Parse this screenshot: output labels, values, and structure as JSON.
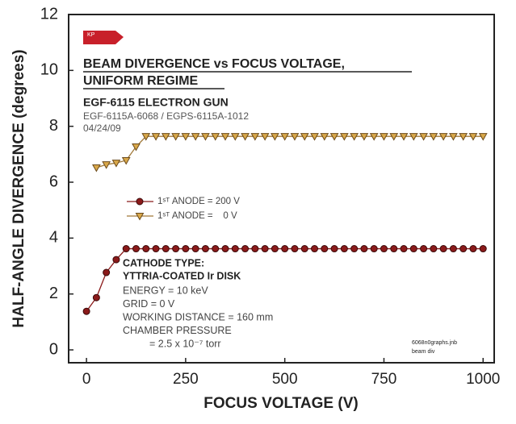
{
  "chart_data": {
    "type": "line",
    "y_label": "HALF-ANGLE DIVERGENCE (degrees)",
    "x_label": "FOCUS VOLTAGE (V)",
    "logo": "KP",
    "title_lines": [
      "BEAM DIVERGENCE vs FOCUS VOLTAGE,",
      "UNIFORM REGIME"
    ],
    "subtitle": "EGF-6115 ELECTRON GUN",
    "info_lines": [
      "EGF-6115A-6068 / EGPS-6115A-1012",
      "04/24/09"
    ],
    "notes_bold": [
      "CATHODE TYPE:",
      "YTTRIA-COATED Ir DISK"
    ],
    "notes": [
      "ENERGY = 10 keV",
      "GRID = 0 V",
      "WORKING DISTANCE = 160 mm",
      "CHAMBER PRESSURE",
      "= 2.5 x 10⁻⁷ torr"
    ],
    "file_notes": [
      "6068n0graphs.jnb",
      "beam div"
    ],
    "xlim": [
      -45,
      1028
    ],
    "ylim": [
      -0.46,
      12
    ],
    "xticks": [
      0,
      250,
      500,
      750,
      1000
    ],
    "yticks": [
      0,
      2,
      4,
      6,
      8,
      10,
      12
    ],
    "series": [
      {
        "name": "1ˢᵀ ANODE = 200 V",
        "color": "#8b1a1a",
        "marker": "circle",
        "x": [
          0,
          25,
          50,
          75,
          100,
          125,
          150,
          175,
          200,
          225,
          250,
          275,
          300,
          325,
          350,
          375,
          400,
          425,
          450,
          475,
          500,
          525,
          550,
          575,
          600,
          625,
          650,
          675,
          700,
          725,
          750,
          775,
          800,
          825,
          850,
          875,
          900,
          925,
          950,
          975,
          1000
        ],
        "values": [
          1.38,
          1.87,
          2.77,
          3.23,
          3.62,
          3.62,
          3.62,
          3.62,
          3.62,
          3.62,
          3.62,
          3.62,
          3.62,
          3.62,
          3.62,
          3.62,
          3.62,
          3.62,
          3.62,
          3.62,
          3.62,
          3.62,
          3.62,
          3.62,
          3.62,
          3.62,
          3.62,
          3.62,
          3.62,
          3.62,
          3.62,
          3.62,
          3.62,
          3.62,
          3.62,
          3.62,
          3.62,
          3.62,
          3.62,
          3.62,
          3.62
        ]
      },
      {
        "name": "1ˢᵀ ANODE =    0 V",
        "color": "#d9a84a",
        "marker": "triangle",
        "x": [
          25,
          50,
          75,
          100,
          125,
          150,
          175,
          200,
          225,
          250,
          275,
          300,
          325,
          350,
          375,
          400,
          425,
          450,
          475,
          500,
          525,
          550,
          575,
          600,
          625,
          650,
          675,
          700,
          725,
          750,
          775,
          800,
          825,
          850,
          875,
          900,
          925,
          950,
          975,
          1000
        ],
        "values": [
          6.52,
          6.63,
          6.69,
          6.78,
          7.27,
          7.64,
          7.64,
          7.64,
          7.64,
          7.64,
          7.64,
          7.64,
          7.64,
          7.64,
          7.64,
          7.64,
          7.64,
          7.64,
          7.64,
          7.64,
          7.64,
          7.64,
          7.64,
          7.64,
          7.64,
          7.64,
          7.64,
          7.64,
          7.64,
          7.64,
          7.64,
          7.64,
          7.64,
          7.64,
          7.64,
          7.64,
          7.64,
          7.64,
          7.64,
          7.64
        ]
      }
    ]
  }
}
